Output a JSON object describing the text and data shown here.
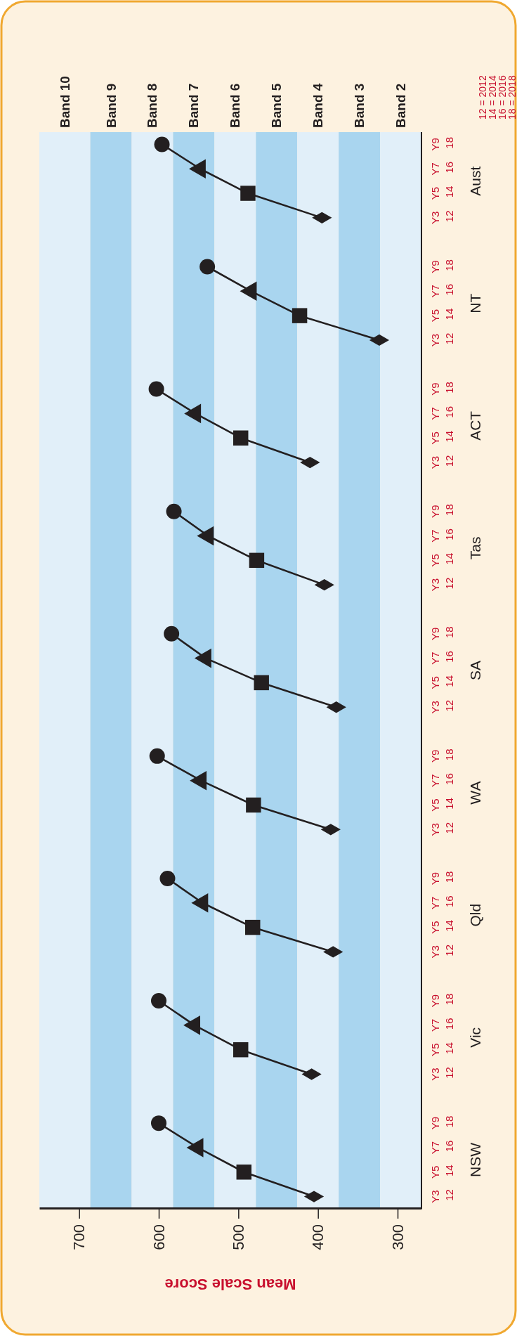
{
  "chart_data": {
    "type": "line",
    "orientation": "horizontal",
    "xlabel": "Mean Scale Score",
    "categories": [
      "Y9 18",
      "Y7 16",
      "Y5 14",
      "Y3 12",
      null,
      "Y9 18",
      "Y7 16",
      "Y5 14",
      "Y3 12",
      null,
      "Y9 18",
      "Y7 16",
      "Y5 14",
      "Y3 12",
      null,
      "Y9 18",
      "Y7 16",
      "Y5 14",
      "Y3 12",
      null,
      "Y9 18",
      "Y7 16",
      "Y5 14",
      "Y3 12",
      null,
      "Y9 18",
      "Y7 16",
      "Y5 14",
      "Y3 12",
      null,
      "Y9 18",
      "Y7 16",
      "Y5 14",
      "Y3 12",
      null,
      "Y9 18",
      "Y7 16",
      "Y5 14",
      "Y3 12",
      null,
      "Y9 18",
      "Y7 16",
      "Y5 14",
      "Y3 12"
    ],
    "xlim": [
      750,
      270
    ],
    "xticks": [
      700,
      600,
      500,
      400,
      300
    ],
    "bands": [
      {
        "axis": "x",
        "from": 686,
        "to": 750,
        "label": "Band 10",
        "color": "#e1eff9"
      },
      {
        "axis": "x",
        "from": 634,
        "to": 686,
        "label": "Band 9",
        "color": "#a9d5ef"
      },
      {
        "axis": "x",
        "from": 582,
        "to": 634,
        "label": "Band 8",
        "color": "#e1eff9"
      },
      {
        "axis": "x",
        "from": 530,
        "to": 582,
        "label": "Band 7",
        "color": "#a9d5ef"
      },
      {
        "axis": "x",
        "from": 478,
        "to": 530,
        "label": "Band 6",
        "color": "#e1eff9"
      },
      {
        "axis": "x",
        "from": 426,
        "to": 478,
        "label": "Band 5",
        "color": "#a9d5ef"
      },
      {
        "axis": "x",
        "from": 374,
        "to": 426,
        "label": "Band 4",
        "color": "#e1eff9"
      },
      {
        "axis": "x",
        "from": 322,
        "to": 374,
        "label": "Band 3",
        "color": "#a9d5ef"
      },
      {
        "axis": "x",
        "from": 270,
        "to": 322,
        "label": "Band 2",
        "color": "#e1eff9"
      }
    ],
    "series": [
      {
        "name": "Aust",
        "type": "line",
        "color": "#231f20",
        "values": [
          596,
          548,
          488,
          395,
          null,
          null,
          null,
          null,
          null,
          null,
          null,
          null,
          null,
          null,
          null,
          null,
          null,
          null,
          null,
          null,
          null,
          null,
          null,
          null,
          null,
          null,
          null,
          null,
          null,
          null,
          null,
          null,
          null,
          null,
          null,
          null,
          null,
          null,
          null,
          null,
          null,
          null,
          null,
          null
        ]
      },
      {
        "name": "NT",
        "type": "line",
        "color": "#231f20",
        "values": [
          null,
          null,
          null,
          null,
          null,
          539,
          484,
          423,
          323,
          null,
          null,
          null,
          null,
          null,
          null,
          null,
          null,
          null,
          null,
          null,
          null,
          null,
          null,
          null,
          null,
          null,
          null,
          null,
          null,
          null,
          null,
          null,
          null,
          null,
          null,
          null,
          null,
          null,
          null,
          null,
          null,
          null,
          null,
          null
        ]
      },
      {
        "name": "ACT",
        "type": "line",
        "color": "#231f20",
        "values": [
          null,
          null,
          null,
          null,
          null,
          null,
          null,
          null,
          null,
          null,
          603,
          554,
          497,
          410,
          null,
          null,
          null,
          null,
          null,
          null,
          null,
          null,
          null,
          null,
          null,
          null,
          null,
          null,
          null,
          null,
          null,
          null,
          null,
          null,
          null,
          null,
          null,
          null,
          null,
          null,
          null,
          null,
          null,
          null
        ]
      },
      {
        "name": "Tas",
        "type": "line",
        "color": "#231f20",
        "values": [
          null,
          null,
          null,
          null,
          null,
          null,
          null,
          null,
          null,
          null,
          null,
          null,
          null,
          null,
          null,
          581,
          538,
          477,
          392,
          null,
          null,
          null,
          null,
          null,
          null,
          null,
          null,
          null,
          null,
          null,
          null,
          null,
          null,
          null,
          null,
          null,
          null,
          null,
          null,
          null,
          null,
          null,
          null,
          null
        ]
      },
      {
        "name": "SA",
        "type": "line",
        "color": "#231f20",
        "values": [
          null,
          null,
          null,
          null,
          null,
          null,
          null,
          null,
          null,
          null,
          null,
          null,
          null,
          null,
          null,
          null,
          null,
          null,
          null,
          null,
          584,
          541,
          471,
          377,
          null,
          null,
          null,
          null,
          null,
          null,
          null,
          null,
          null,
          null,
          null,
          null,
          null,
          null,
          null,
          null,
          null,
          null,
          null,
          null
        ]
      },
      {
        "name": "WA",
        "type": "line",
        "color": "#231f20",
        "values": [
          null,
          null,
          null,
          null,
          null,
          null,
          null,
          null,
          null,
          null,
          null,
          null,
          null,
          null,
          null,
          null,
          null,
          null,
          null,
          null,
          null,
          null,
          null,
          null,
          null,
          602,
          547,
          481,
          384,
          null,
          null,
          null,
          null,
          null,
          null,
          null,
          null,
          null,
          null,
          null,
          null,
          null,
          null,
          null
        ]
      },
      {
        "name": "Qld",
        "type": "line",
        "color": "#231f20",
        "values": [
          null,
          null,
          null,
          null,
          null,
          null,
          null,
          null,
          null,
          null,
          null,
          null,
          null,
          null,
          null,
          null,
          null,
          null,
          null,
          null,
          null,
          null,
          null,
          null,
          null,
          null,
          null,
          null,
          null,
          null,
          589,
          545,
          482,
          381,
          null,
          null,
          null,
          null,
          null,
          null,
          null,
          null,
          null,
          null
        ]
      },
      {
        "name": "Vic",
        "type": "line",
        "color": "#231f20",
        "values": [
          null,
          null,
          null,
          null,
          null,
          null,
          null,
          null,
          null,
          null,
          null,
          null,
          null,
          null,
          null,
          null,
          null,
          null,
          null,
          null,
          null,
          null,
          null,
          null,
          null,
          null,
          null,
          null,
          null,
          null,
          null,
          null,
          null,
          null,
          null,
          600,
          555,
          497,
          408,
          null,
          null,
          null,
          null,
          null
        ]
      },
      {
        "name": "NSW",
        "type": "line",
        "color": "#231f20",
        "values": [
          null,
          null,
          null,
          null,
          null,
          null,
          null,
          null,
          null,
          null,
          null,
          null,
          null,
          null,
          null,
          null,
          null,
          null,
          null,
          null,
          null,
          null,
          null,
          null,
          null,
          null,
          null,
          null,
          null,
          null,
          null,
          null,
          null,
          null,
          null,
          null,
          null,
          null,
          null,
          null,
          600,
          551,
          493,
          405
        ]
      },
      {
        "type": "scatter",
        "marker": "circle",
        "color": "#231f20",
        "values": [
          596,
          null,
          null,
          null,
          null,
          539,
          null,
          null,
          null,
          null,
          603,
          null,
          null,
          null,
          null,
          581,
          null,
          null,
          null,
          null,
          584,
          null,
          null,
          null,
          null,
          602,
          null,
          null,
          null,
          null,
          589,
          null,
          null,
          null,
          null,
          600,
          null,
          null,
          null,
          null,
          600,
          null,
          null,
          null
        ]
      },
      {
        "type": "scatter",
        "marker": "triangle",
        "color": "#231f20",
        "values": [
          null,
          548,
          null,
          null,
          null,
          null,
          484,
          null,
          null,
          null,
          null,
          554,
          null,
          null,
          null,
          null,
          538,
          null,
          null,
          null,
          null,
          541,
          null,
          null,
          null,
          null,
          547,
          null,
          null,
          null,
          null,
          545,
          null,
          null,
          null,
          null,
          555,
          null,
          null,
          null,
          null,
          551,
          null,
          null
        ]
      },
      {
        "type": "scatter",
        "marker": "square",
        "color": "#231f20",
        "values": [
          null,
          null,
          488,
          null,
          null,
          null,
          null,
          423,
          null,
          null,
          null,
          null,
          497,
          null,
          null,
          null,
          null,
          477,
          null,
          null,
          null,
          null,
          471,
          null,
          null,
          null,
          null,
          481,
          null,
          null,
          null,
          null,
          482,
          null,
          null,
          null,
          null,
          497,
          null,
          null,
          null,
          null,
          493,
          null
        ]
      },
      {
        "type": "scatter",
        "marker": "diamond",
        "color": "#231f20",
        "values": [
          null,
          null,
          null,
          395,
          null,
          null,
          null,
          null,
          323,
          null,
          null,
          null,
          null,
          410,
          null,
          null,
          null,
          null,
          392,
          null,
          null,
          null,
          null,
          377,
          null,
          null,
          null,
          null,
          384,
          null,
          null,
          null,
          null,
          381,
          null,
          null,
          null,
          null,
          408,
          null,
          null,
          null,
          null,
          405
        ]
      }
    ],
    "annotations": [
      "12 = 2012",
      "14 = 2014",
      "16 = 2016",
      "18 = 2018"
    ]
  }
}
